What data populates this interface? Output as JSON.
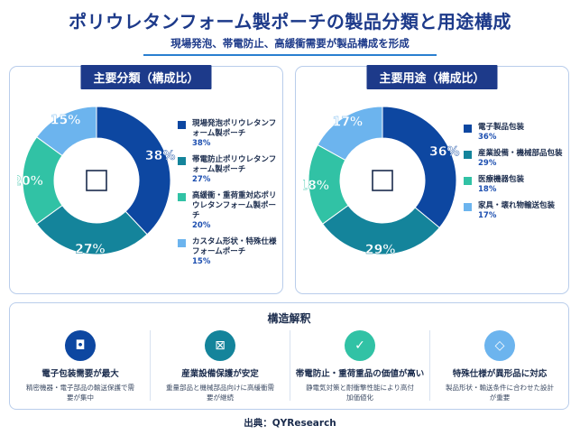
{
  "title": "ポリウレタンフォーム製ポーチの製品分類と用途構成",
  "subtitle": "現場発泡、帯電防止、高緩衝需要が製品構成を形成",
  "chart_data": [
    {
      "type": "pie",
      "title": "主要分類（構成比）",
      "labels": [
        "現場発泡ポリウレタンフォーム製ポーチ",
        "帯電防止ポリウレタンフォーム製ポーチ",
        "高緩衝・重荷重対応ポリウレタンフォーム製ポーチ",
        "カスタム形状・特殊仕様フォームポーチ"
      ],
      "values": [
        38,
        27,
        20,
        15
      ],
      "value_labels": [
        "38%",
        "27%",
        "20%",
        "15%"
      ],
      "colors": [
        "#0d47a1",
        "#14849b",
        "#31c2a5",
        "#6cb4ee"
      ]
    },
    {
      "type": "pie",
      "title": "主要用途（構成比）",
      "labels": [
        "電子製品包装",
        "産業設備・機械部品包装",
        "医療機器包装",
        "家具・壊れ物輸送包装"
      ],
      "values": [
        36,
        29,
        18,
        17
      ],
      "value_labels": [
        "36%",
        "29%",
        "18%",
        "17%"
      ],
      "colors": [
        "#0d47a1",
        "#14849b",
        "#31c2a5",
        "#6cb4ee"
      ]
    }
  ],
  "structure": {
    "title": "構造解釈",
    "items": [
      {
        "icon": "square-dot-icon",
        "glyph": "◘",
        "color": "#0d47a1",
        "heading": "電子包装需要が最大",
        "desc": "精密機器・電子部品の輸送保護で需要が集中"
      },
      {
        "icon": "box-cross-icon",
        "glyph": "⊠",
        "color": "#14849b",
        "heading": "産業設備保護が安定",
        "desc": "重量部品と機械部品向けに高緩衝需要が継続"
      },
      {
        "icon": "check-icon",
        "glyph": "✓",
        "color": "#31c2a5",
        "heading": "帯電防止・重荷重品の価値が高い",
        "desc": "静電気対策と耐衝撃性能により高付加価値化"
      },
      {
        "icon": "diamond-icon",
        "glyph": "◇",
        "color": "#6cb4ee",
        "heading": "特殊仕様が異形品に対応",
        "desc": "製品形状・輸送条件に合わせた設計が重要"
      }
    ]
  },
  "source": "出典：QYResearch"
}
